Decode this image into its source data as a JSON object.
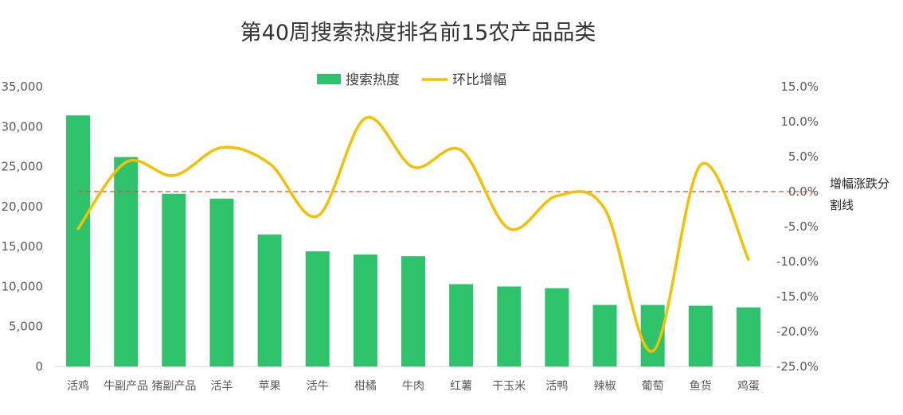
{
  "chart_data": {
    "type": "bar+line",
    "title": "第40周搜索热度排名前15农产品品类",
    "categories": [
      "活鸡",
      "牛副产品",
      "猪副产品",
      "活羊",
      "苹果",
      "活牛",
      "柑橘",
      "牛肉",
      "红薯",
      "干玉米",
      "活鸭",
      "辣椒",
      "葡萄",
      "鱼货",
      "鸡蛋"
    ],
    "series": [
      {
        "name": "搜索热度",
        "type": "bar",
        "axis": "left",
        "values": [
          31400,
          26200,
          21600,
          21000,
          16500,
          14400,
          14000,
          13800,
          10300,
          10000,
          9800,
          7700,
          7700,
          7600,
          7400
        ]
      },
      {
        "name": "环比增幅",
        "type": "line",
        "axis": "right",
        "smooth": true,
        "values": [
          -5.3,
          4.2,
          2.3,
          6.3,
          4.0,
          -3.5,
          10.5,
          3.5,
          5.9,
          -5.3,
          -0.6,
          -2.5,
          -22.8,
          3.8,
          -9.7
        ]
      }
    ],
    "left_axis": {
      "ylim": [
        0,
        35000
      ],
      "ticks": [
        "0",
        "5,000",
        "10,000",
        "15,000",
        "20,000",
        "25,000",
        "30,000",
        "35,000"
      ]
    },
    "right_axis": {
      "ylim": [
        -25,
        15
      ],
      "ticks": [
        "-25.0%",
        "-20.0%",
        "-15.0%",
        "-10.0%",
        "-5.0%",
        "0.0%",
        "5.0%",
        "10.0%",
        "15.0%"
      ]
    },
    "reference_line": {
      "axis": "right",
      "value": 0,
      "label": "增幅涨跌分割线"
    },
    "legend": {
      "placement": "top-center"
    },
    "grid": false,
    "colors": {
      "bar": "#2ec36a",
      "line": "#f5c000",
      "reference": "#c9504b"
    }
  }
}
